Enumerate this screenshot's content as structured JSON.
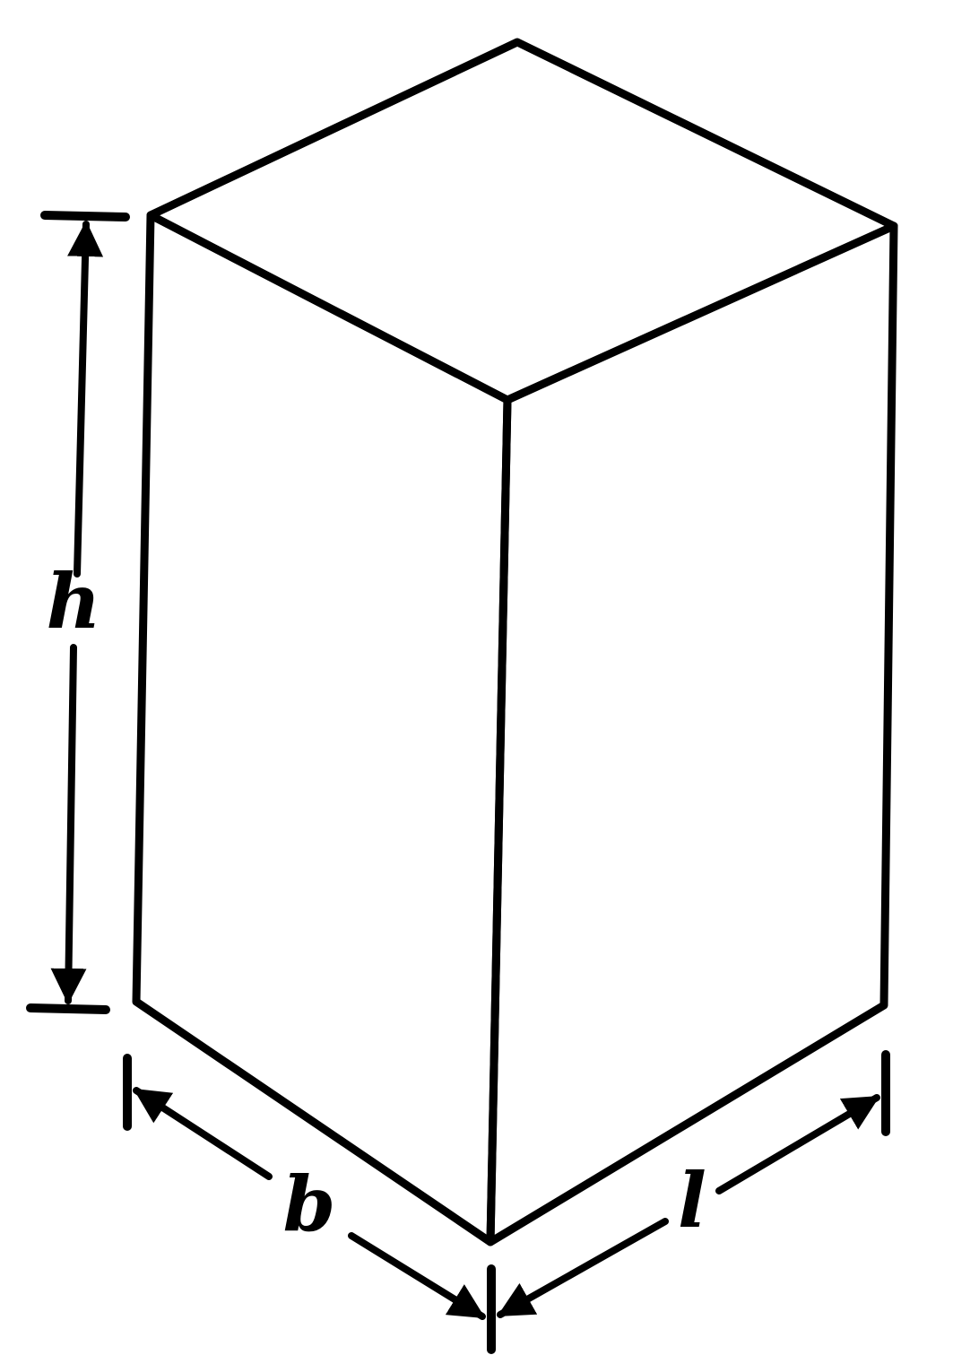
{
  "diagram": {
    "labels": {
      "height": "h",
      "breadth": "b",
      "length": "l"
    },
    "colors": {
      "ink": "#000000",
      "background": "#ffffff"
    }
  }
}
